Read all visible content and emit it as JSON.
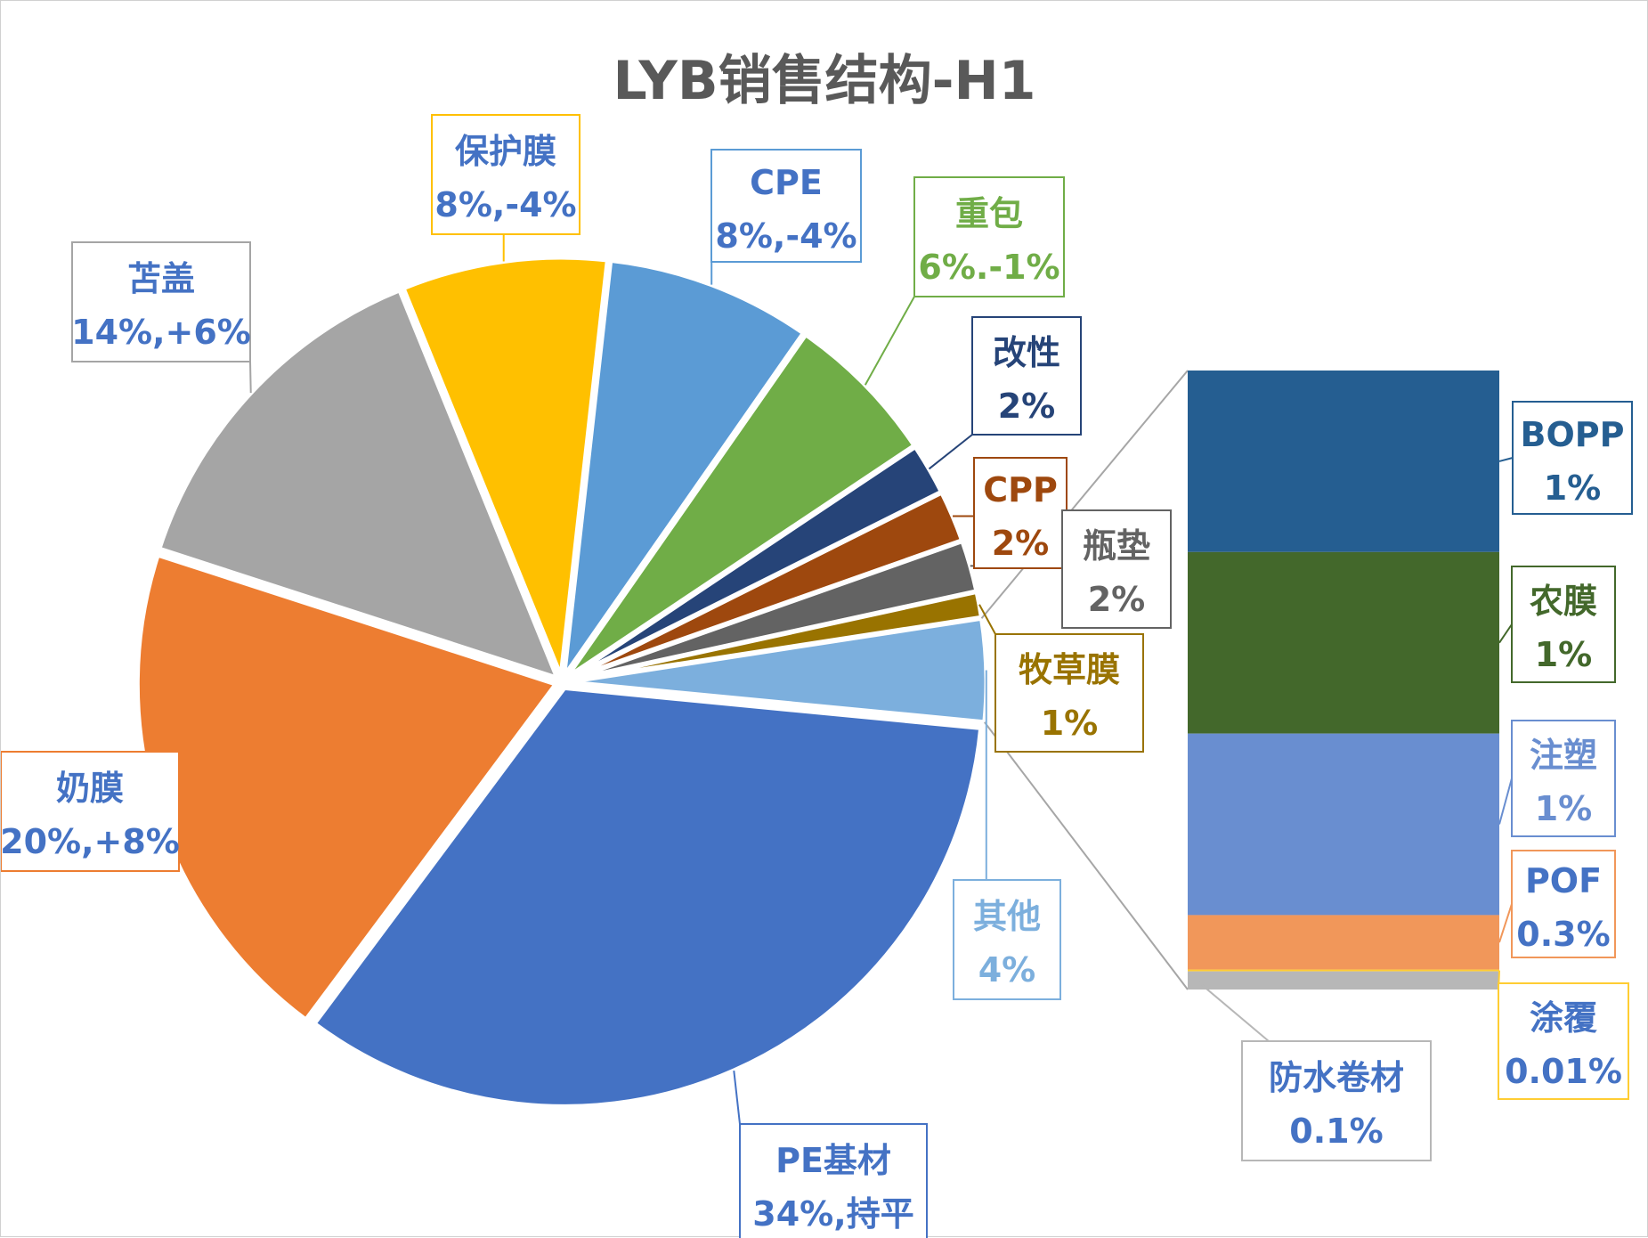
{
  "chart_data": {
    "type": "bar-of-pie",
    "title": "LYB销售结构-H1",
    "pie": {
      "slices": [
        {
          "name": "PE基材",
          "label": "34%,持平",
          "value": 34,
          "color": "#4472C4"
        },
        {
          "name": "奶膜",
          "label": "20%,+8%",
          "value": 20,
          "color": "#ED7D31"
        },
        {
          "name": "苫盖",
          "label": "14%,+6%",
          "value": 14,
          "color": "#A5A5A5"
        },
        {
          "name": "保护膜",
          "label": "8%,-4%",
          "value": 8,
          "color": "#FFC000"
        },
        {
          "name": "CPE",
          "label": "8%,-4%",
          "value": 8,
          "color": "#5B9BD5"
        },
        {
          "name": "重包",
          "label": "6%.-1%",
          "value": 6,
          "color": "#70AD47"
        },
        {
          "name": "改性",
          "label": "2%",
          "value": 2,
          "color": "#264478"
        },
        {
          "name": "CPP",
          "label": "2%",
          "value": 2,
          "color": "#9E480E"
        },
        {
          "name": "瓶垫",
          "label": "2%",
          "value": 2,
          "color": "#636363"
        },
        {
          "name": "牧草膜",
          "label": "1%",
          "value": 1,
          "color": "#997300"
        },
        {
          "name": "其他",
          "label": "4%",
          "value": 4,
          "color": "#7CAFDD"
        }
      ]
    },
    "bar": {
      "parent": "其他",
      "segments": [
        {
          "name": "BOPP",
          "label": "1%",
          "value": 1,
          "color": "#255E91"
        },
        {
          "name": "农膜",
          "label": "1%",
          "value": 1,
          "color": "#43682B"
        },
        {
          "name": "注塑",
          "label": "1%",
          "value": 1,
          "color": "#698ED0"
        },
        {
          "name": "POF",
          "label": "0.3%",
          "value": 0.3,
          "color": "#F1975A"
        },
        {
          "name": "涂覆",
          "label": "0.01%",
          "value": 0.01,
          "color": "#FFCD33"
        },
        {
          "name": "防水卷材",
          "label": "0.1%",
          "value": 0.1,
          "color": "#B7B7B7"
        }
      ]
    }
  }
}
